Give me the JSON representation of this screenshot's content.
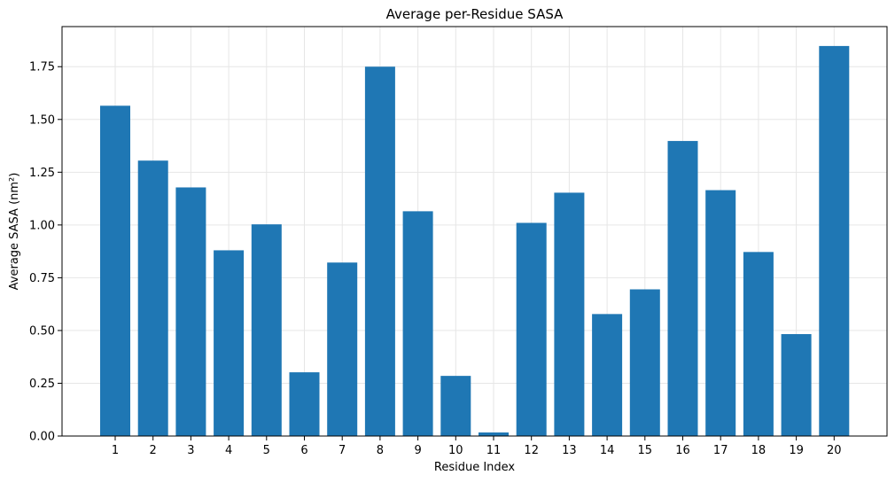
{
  "chart_data": {
    "type": "bar",
    "title": "Average per-Residue SASA",
    "xlabel": "Residue Index",
    "ylabel": "Average SASA (nm²)",
    "categories": [
      "1",
      "2",
      "3",
      "4",
      "5",
      "6",
      "7",
      "8",
      "9",
      "10",
      "11",
      "12",
      "13",
      "14",
      "15",
      "16",
      "17",
      "18",
      "19",
      "20"
    ],
    "values": [
      1.565,
      1.305,
      1.178,
      0.88,
      1.003,
      0.302,
      0.822,
      1.75,
      1.065,
      0.285,
      0.017,
      1.01,
      1.153,
      0.578,
      0.695,
      1.398,
      1.165,
      0.872,
      0.483,
      1.848
    ],
    "ylim": [
      0,
      1.94
    ],
    "yticks": [
      0.0,
      0.25,
      0.5,
      0.75,
      1.0,
      1.25,
      1.5,
      1.75
    ],
    "ytick_labels": [
      "0.00",
      "0.25",
      "0.50",
      "0.75",
      "1.00",
      "1.25",
      "1.50",
      "1.75"
    ],
    "grid": true,
    "bar_color": "#1f77b4",
    "grid_color": "#e6e6e6"
  }
}
